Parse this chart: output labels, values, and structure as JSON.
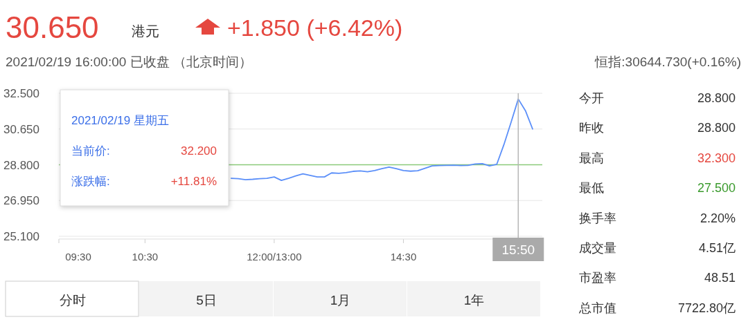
{
  "chart_data": {
    "type": "line",
    "title": "30.650",
    "categories": [
      "09:30",
      null,
      null,
      null,
      null,
      null,
      null,
      null,
      null,
      null,
      null,
      null,
      "10:30",
      null,
      null,
      null,
      null,
      null,
      null,
      null,
      null,
      null,
      null,
      null,
      null,
      null,
      null,
      null,
      null,
      null,
      "12:00/13:00",
      null,
      null,
      null,
      null,
      null,
      null,
      null,
      null,
      null,
      null,
      null,
      null,
      null,
      null,
      null,
      null,
      null,
      "14:30",
      null,
      null,
      null,
      null,
      null,
      null,
      null,
      null,
      null,
      null,
      null,
      null,
      null,
      null,
      null,
      "15:50",
      null,
      null
    ],
    "series": [
      {
        "color": "#5b8ff9",
        "values": [
          null,
          null,
          null,
          null,
          null,
          null,
          null,
          null,
          null,
          null,
          null,
          null,
          null,
          null,
          null,
          null,
          null,
          null,
          null,
          null,
          null,
          null,
          null,
          null,
          28.1,
          28.08,
          28.03,
          28.05,
          28.08,
          28.1,
          28.17,
          27.99,
          28.1,
          28.22,
          28.33,
          28.25,
          28.17,
          28.17,
          28.38,
          28.36,
          28.39,
          28.46,
          28.48,
          28.44,
          28.5,
          28.6,
          28.68,
          28.6,
          28.5,
          28.47,
          28.49,
          28.62,
          28.74,
          28.76,
          28.77,
          28.78,
          28.76,
          28.77,
          28.84,
          28.86,
          28.74,
          28.82,
          29.84,
          31.0,
          32.2,
          31.6,
          30.65
        ]
      }
    ],
    "ylim": [
      25.1,
      32.5
    ],
    "yticks": [
      {
        "value": 25.1,
        "label": "25.100"
      },
      {
        "value": 26.95,
        "label": "26.950"
      },
      {
        "value": 28.8,
        "label": "28.800"
      },
      {
        "value": 30.65,
        "label": "30.650"
      },
      {
        "value": 32.5,
        "label": "32.500"
      }
    ],
    "grid": "y",
    "line_style": "solid",
    "ref_lines": [
      {
        "axis": "y",
        "value": 28.8,
        "color": "#8bc97a"
      },
      {
        "axis": "x",
        "value": "15:50",
        "color": "#b5b5b5"
      }
    ],
    "annotations": [
      "港元",
      "+1.850 (+6.42%)",
      "2021/02/19 16:00:00  已收盘 （北京时间）",
      "恒指:30644.730(+0.16%)",
      "2021/02/19 星期五",
      "当前价:",
      "32.200",
      "涨跌幅:",
      "+11.81%",
      "今开",
      "28.800",
      "昨收",
      "28.800",
      "最高",
      "32.300",
      "最低",
      "27.500",
      "换手率",
      "2.20%",
      "成交量",
      "4.51亿",
      "市盈率",
      "48.51",
      "总市值",
      "7722.80亿",
      "分时",
      "5日",
      "1月",
      "1年"
    ]
  }
}
